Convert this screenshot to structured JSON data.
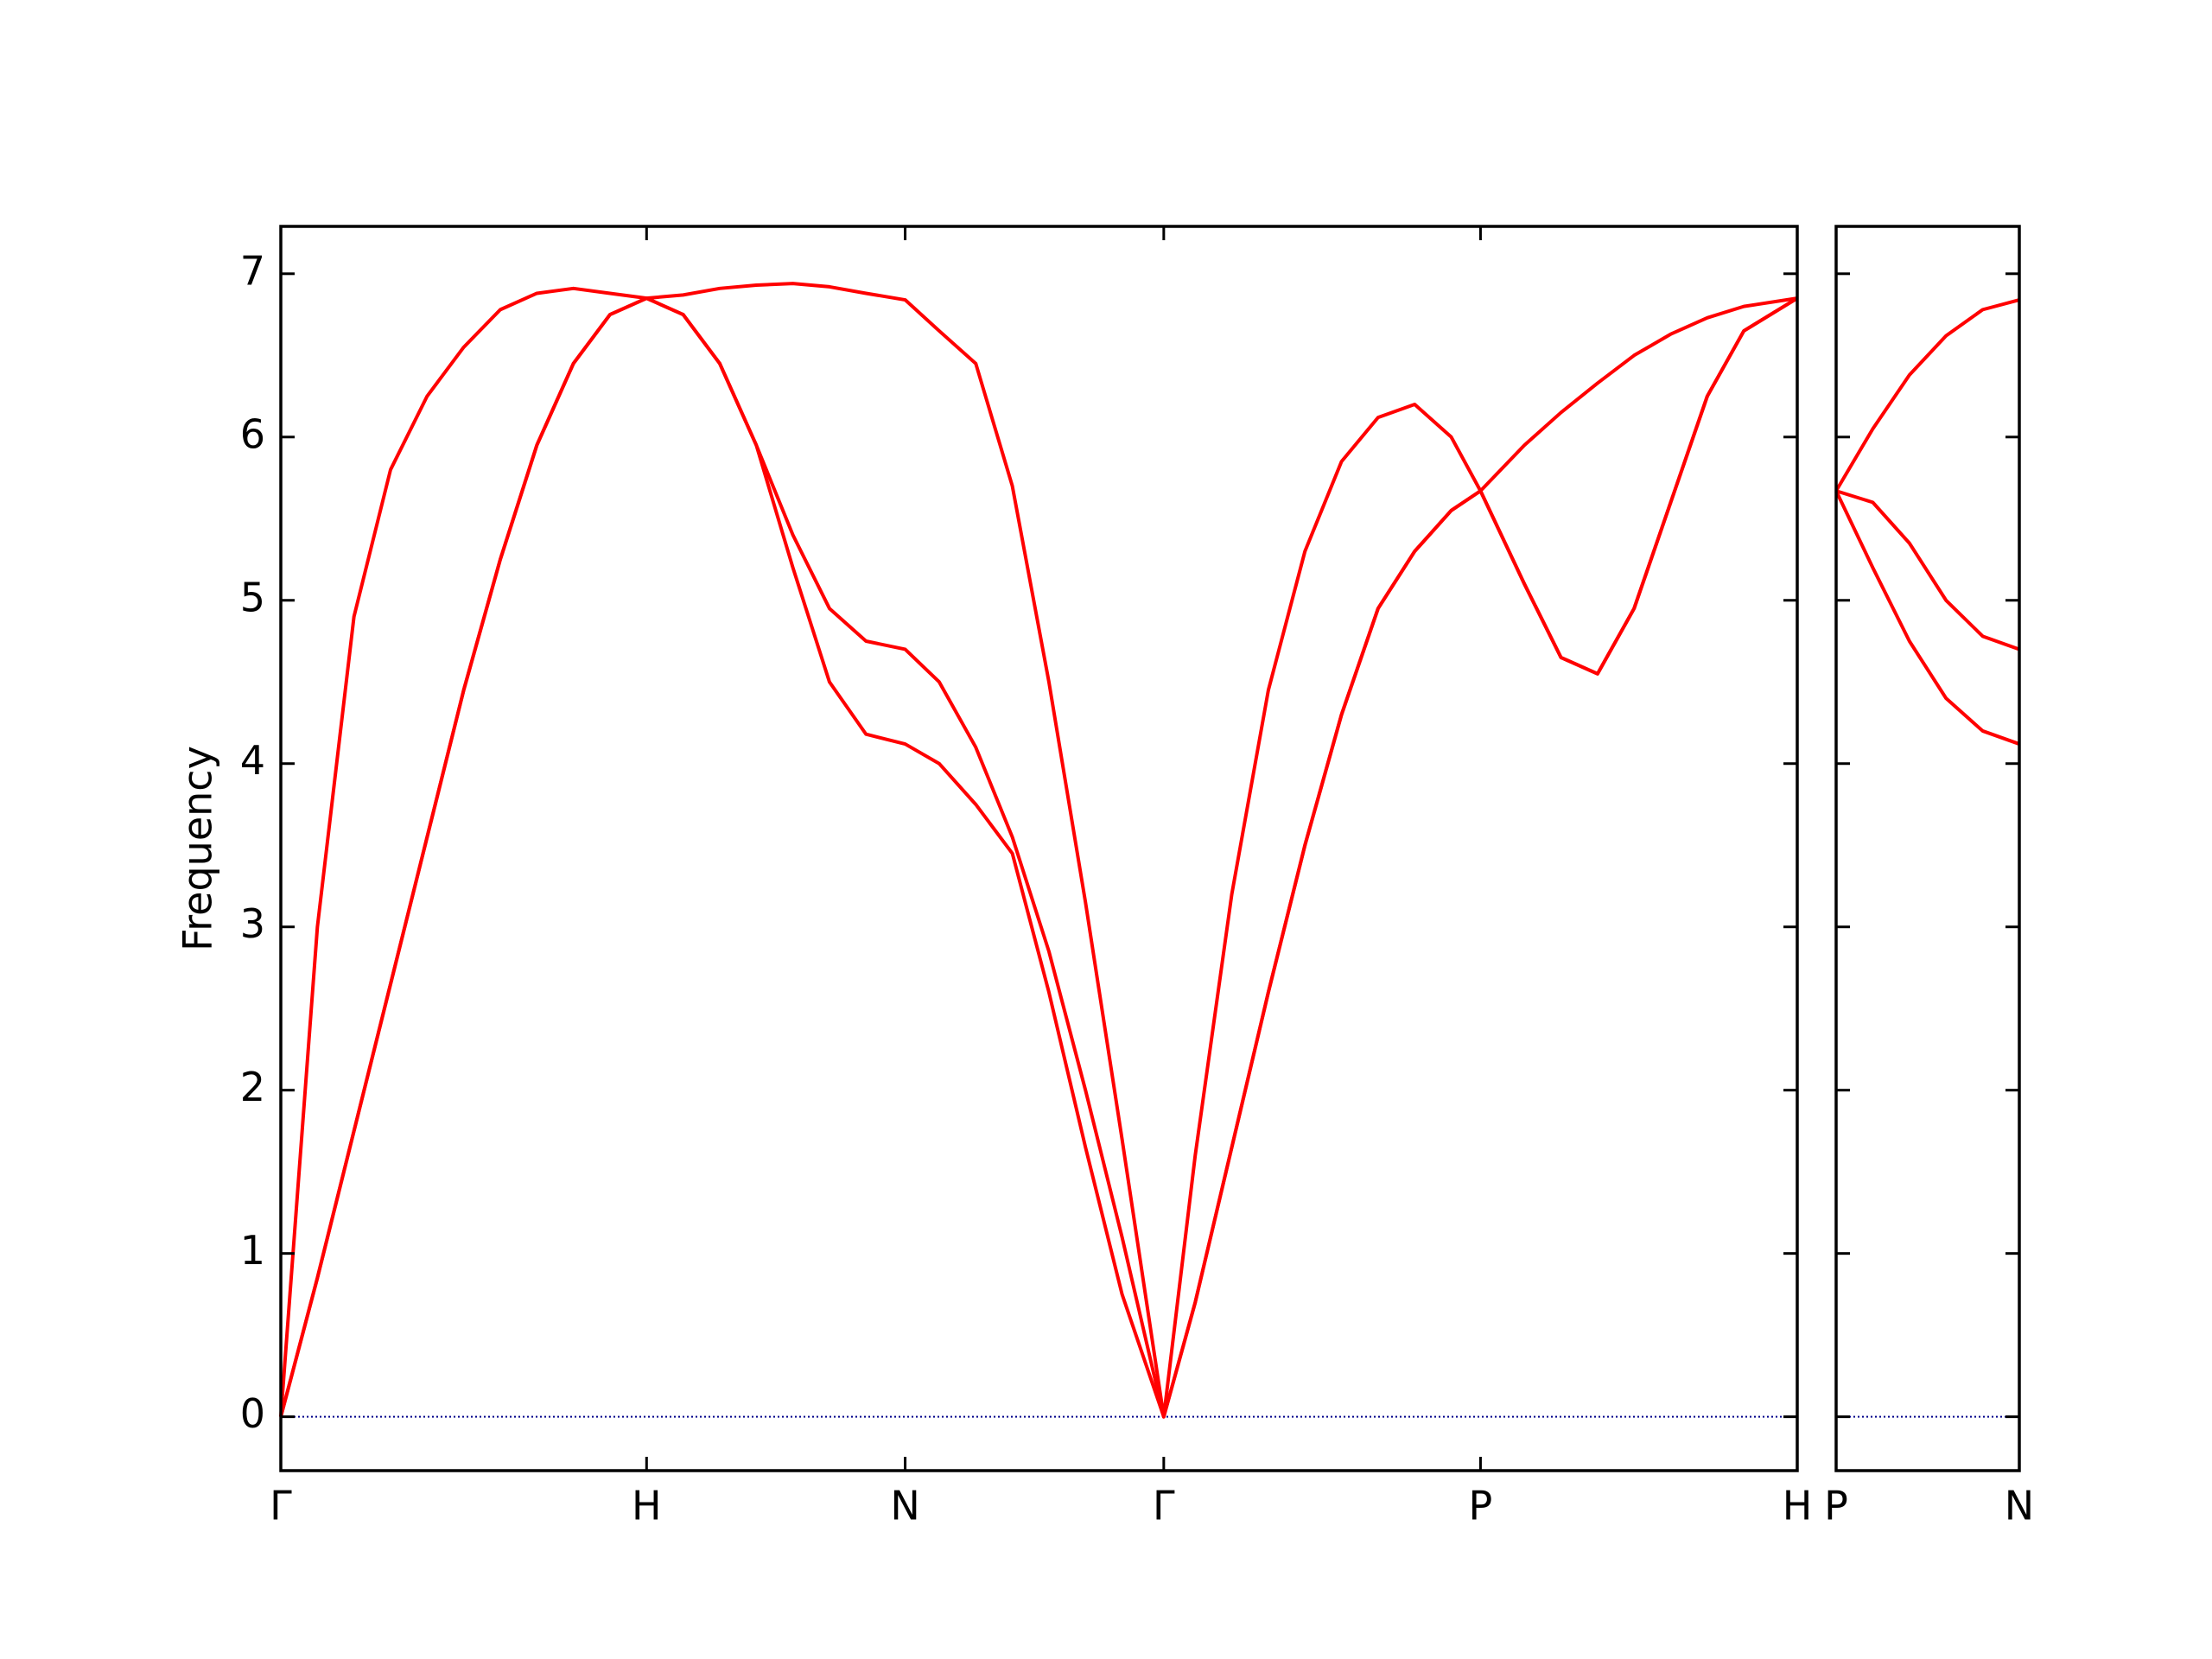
{
  "chart_data": [
    {
      "type": "line",
      "ylabel": "Frequency",
      "x": [
        0,
        0.1,
        0.2,
        0.3,
        0.4,
        0.5,
        0.6,
        0.7,
        0.8,
        0.9,
        1.0,
        1.1,
        1.2,
        1.3,
        1.4,
        1.5,
        1.6,
        1.707,
        1.8,
        1.9,
        2.0,
        2.1,
        2.2,
        2.3,
        2.414,
        2.5,
        2.6,
        2.7,
        2.8,
        2.9,
        3.0,
        3.1,
        3.2,
        3.28,
        3.4,
        3.5,
        3.6,
        3.7,
        3.8,
        3.9,
        4.0,
        4.146
      ],
      "series": [
        {
          "color": "#ff0000",
          "values": [
            0,
            0.85,
            1.75,
            2.65,
            3.55,
            4.45,
            5.25,
            5.95,
            6.45,
            6.75,
            6.85,
            6.75,
            6.45,
            5.95,
            5.2,
            4.5,
            4.18,
            4.12,
            4.0,
            3.75,
            3.45,
            2.6,
            1.65,
            0.75,
            0,
            0.7,
            1.65,
            2.6,
            3.5,
            4.3,
            4.95,
            5.3,
            5.55,
            5.67,
            5.1,
            4.65,
            4.55,
            4.95,
            5.6,
            6.25,
            6.65,
            6.85
          ]
        },
        {
          "color": "#ff0000",
          "values": [
            0,
            0.85,
            1.75,
            2.65,
            3.55,
            4.45,
            5.25,
            5.95,
            6.45,
            6.75,
            6.85,
            6.75,
            6.45,
            5.95,
            5.4,
            4.95,
            4.75,
            4.7,
            4.5,
            4.1,
            3.55,
            2.85,
            2.0,
            1.1,
            0,
            0.7,
            1.65,
            2.6,
            3.5,
            4.3,
            4.95,
            5.3,
            5.55,
            5.67,
            5.1,
            4.65,
            4.55,
            4.95,
            5.6,
            6.25,
            6.65,
            6.85
          ]
        },
        {
          "color": "#ff0000",
          "values": [
            0,
            3.0,
            4.9,
            5.8,
            6.25,
            6.55,
            6.78,
            6.88,
            6.91,
            6.88,
            6.85,
            6.87,
            6.91,
            6.93,
            6.94,
            6.92,
            6.88,
            6.84,
            6.65,
            6.45,
            5.7,
            4.5,
            3.15,
            1.7,
            0,
            1.6,
            3.2,
            4.45,
            5.3,
            5.85,
            6.12,
            6.2,
            6.0,
            5.67,
            5.95,
            6.15,
            6.33,
            6.5,
            6.63,
            6.73,
            6.8,
            6.85
          ]
        }
      ],
      "xlim": [
        0,
        4.146
      ],
      "xticks": [
        {
          "value": 0,
          "label": "Γ"
        },
        {
          "value": 1.0,
          "label": "H"
        },
        {
          "value": 1.707,
          "label": "N"
        },
        {
          "value": 2.414,
          "label": "Γ"
        },
        {
          "value": 3.28,
          "label": "P"
        },
        {
          "value": 4.146,
          "label": "H"
        }
      ],
      "ylim": [
        -0.33,
        7.29
      ],
      "yticks": [
        0,
        1,
        2,
        3,
        4,
        5,
        6,
        7
      ],
      "show_ytick_labels": true,
      "hlines": [
        {
          "y": 0,
          "color": "#00008b",
          "style": "dotted"
        }
      ]
    },
    {
      "type": "line",
      "x": [
        0,
        0.1,
        0.2,
        0.3,
        0.4,
        0.5
      ],
      "series": [
        {
          "color": "#ff0000",
          "values": [
            5.67,
            6.05,
            6.38,
            6.62,
            6.78,
            6.84
          ]
        },
        {
          "color": "#ff0000",
          "values": [
            5.67,
            5.6,
            5.35,
            5.0,
            4.78,
            4.7
          ]
        },
        {
          "color": "#ff0000",
          "values": [
            5.67,
            5.2,
            4.75,
            4.4,
            4.2,
            4.12
          ]
        }
      ],
      "xlim": [
        0,
        0.5
      ],
      "xticks": [
        {
          "value": 0,
          "label": "P"
        },
        {
          "value": 0.5,
          "label": "N"
        }
      ],
      "ylim": [
        -0.33,
        7.29
      ],
      "yticks": [
        0,
        1,
        2,
        3,
        4,
        5,
        6,
        7
      ],
      "show_ytick_labels": false,
      "hlines": [
        {
          "y": 0,
          "color": "#00008b",
          "style": "dotted"
        }
      ]
    }
  ]
}
